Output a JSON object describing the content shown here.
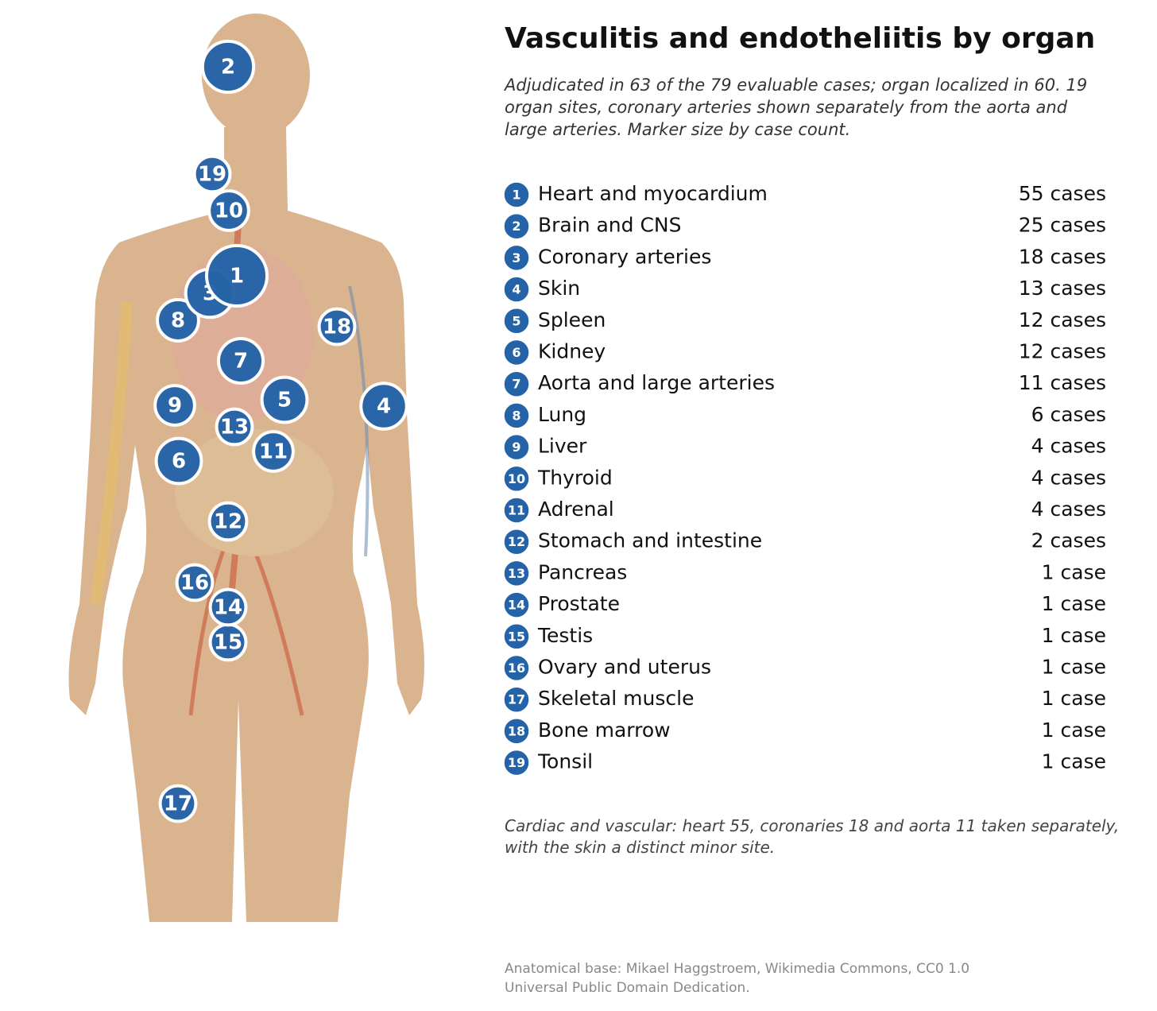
{
  "chart_data": {
    "type": "bubble",
    "title": "Vasculitis and endotheliitis by organ",
    "subtitle": "Adjudicated in 63 of the 79 evaluable cases; organ localized in 60. 19 organ sites, coronary arteries shown separately from the aorta and large arteries. Marker size by case count.",
    "ids": [
      1,
      2,
      3,
      4,
      5,
      6,
      7,
      8,
      9,
      10,
      11,
      12,
      13,
      14,
      15,
      16,
      17,
      18,
      19
    ],
    "categories": [
      "Heart and myocardium",
      "Brain and CNS",
      "Coronary arteries",
      "Skin",
      "Spleen",
      "Kidney",
      "Aorta and large arteries",
      "Lung",
      "Liver",
      "Thyroid",
      "Adrenal",
      "Stomach and intestine",
      "Pancreas",
      "Prostate",
      "Testis",
      "Ovary and uterus",
      "Skeletal muscle",
      "Bone marrow",
      "Tonsil"
    ],
    "values": [
      55,
      25,
      18,
      13,
      12,
      12,
      11,
      6,
      4,
      4,
      4,
      2,
      1,
      1,
      1,
      1,
      1,
      1,
      1
    ],
    "value_labels": [
      "55 cases",
      "25 cases",
      "18 cases",
      "13 cases",
      "12 cases",
      "12 cases",
      "11 cases",
      "6 cases",
      "4 cases",
      "4 cases",
      "4 cases",
      "2 cases",
      "1 case",
      "1 case",
      "1 case",
      "1 case",
      "1 case",
      "1 case",
      "1 case"
    ],
    "color": "#2563a8",
    "note": "Cardiac and vascular: heart 55, coronaries 18 and aorta 11 taken separately, with the skin a distinct minor site.",
    "credit": "Anatomical base: Mikael Haggstroem, Wikimedia Commons, CC0 1.0 Universal Public Domain Dedication."
  }
}
